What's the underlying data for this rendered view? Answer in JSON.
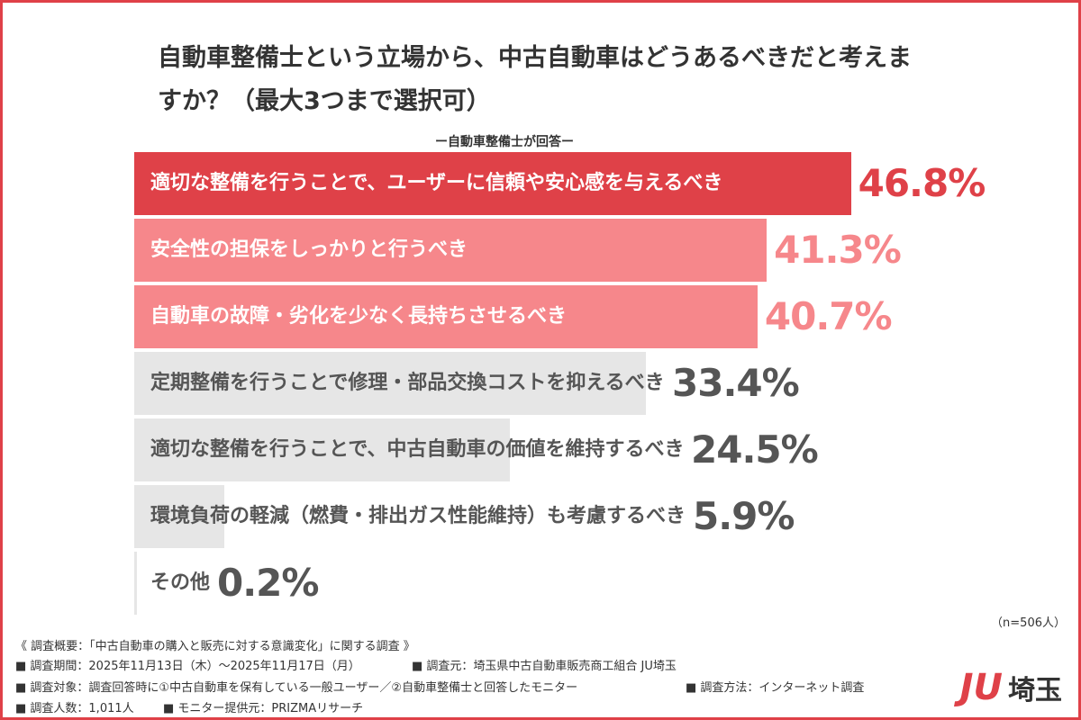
{
  "chart_data": {
    "type": "bar",
    "orientation": "horizontal",
    "title": "自動車整備士という立場から、中古自動車はどうあるべきだと考えますか？（最大3つまで選択可）",
    "subtitle": "ー自動車整備士が回答ー",
    "categories": [
      "適切な整備を行うことで、ユーザーに信頼や安心感を与えるべき",
      "安全性の担保をしっかりと行うべき",
      "自動車の故障・劣化を少なく長持ちさせるべき",
      "定期整備を行うことで修理・部品交換コストを抑えるべき",
      "適切な整備を行うことで、中古自動車の価値を維持するべき",
      "環境負荷の軽減（燃費・排出ガス性能維持）も考慮するべき",
      "その他"
    ],
    "values": [
      46.8,
      41.3,
      40.7,
      33.4,
      24.5,
      5.9,
      0.2
    ],
    "value_labels": [
      "46.8%",
      "41.3%",
      "40.7%",
      "33.4%",
      "24.5%",
      "5.9%",
      "0.2%"
    ],
    "colors": [
      "#df4148",
      "#f6878b",
      "#f6878b",
      "#e6e6e6",
      "#e6e6e6",
      "#e6e6e6",
      "#e6e6e6"
    ],
    "text_colors": [
      "#ffffff",
      "#ffffff",
      "#ffffff",
      "#555555",
      "#555555",
      "#555555",
      "#555555"
    ],
    "label_colors": [
      "#df4148",
      "#f6878b",
      "#f6878b",
      "#555555",
      "#555555",
      "#555555",
      "#555555"
    ],
    "note": "（n=506人）"
  },
  "footer": {
    "lines": [
      "《 調査概要：「中古自動車の購入と販売に対する意識変化」に関する調査 》",
      "■ 調査期間：2025年11月13日（木）～2025年11月17日（月）",
      "■ 調査元：埼玉県中古自動車販売商工組合 JU埼玉",
      "■ 調査対象：調査回答時に①中古自動車を保有している一般ユーザー／②自動車整備士と回答したモニター",
      "■ 調査方法：インターネット調査",
      "■ 調査人数：1,011人",
      "■ モニター提供元：PRIZMAリサーチ"
    ],
    "logo": {
      "mark": "JU",
      "text": "埼玉"
    }
  }
}
